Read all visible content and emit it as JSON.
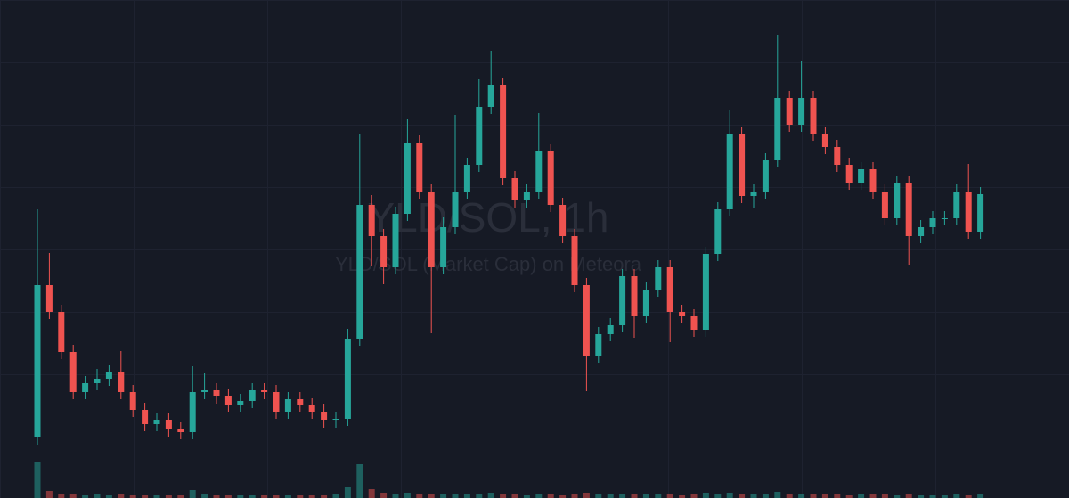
{
  "chart_data": {
    "type": "candlestick",
    "title": "YLD/SOL, 1h",
    "subtitle": "YLD/SOL (Market Cap) on Meteora",
    "open": [
      69,
      239,
      209,
      164,
      119,
      129,
      134,
      141,
      119,
      99,
      83,
      87,
      77,
      74,
      119,
      121,
      114,
      104,
      109,
      121,
      119,
      97,
      111,
      104,
      97,
      87,
      89,
      179,
      329,
      294,
      259,
      319,
      399,
      344,
      259,
      304,
      344,
      374,
      439,
      464,
      359,
      334,
      344,
      389,
      329,
      294,
      239,
      159,
      184,
      194,
      249,
      204,
      234,
      259,
      209,
      204,
      189,
      274,
      324,
      409,
      339,
      344,
      379,
      449,
      419,
      449,
      409,
      394,
      374,
      354,
      369,
      344,
      314,
      354,
      294,
      304,
      314,
      314,
      344,
      299
    ],
    "high": [
      324,
      275,
      217,
      172,
      137,
      145,
      149,
      165,
      127,
      107,
      95,
      95,
      85,
      148,
      140,
      129,
      122,
      117,
      129,
      129,
      127,
      119,
      119,
      112,
      105,
      97,
      190,
      409,
      340,
      302,
      327,
      425,
      407,
      352,
      315,
      430,
      382,
      470,
      502,
      472,
      367,
      352,
      432,
      397,
      337,
      302,
      247,
      192,
      202,
      257,
      257,
      242,
      267,
      267,
      217,
      212,
      282,
      332,
      435,
      417,
      352,
      387,
      520,
      457,
      490,
      457,
      417,
      402,
      382,
      377,
      377,
      352,
      362,
      362,
      312,
      322,
      322,
      352,
      375,
      349
    ],
    "low": [
      59,
      201,
      156,
      111,
      111,
      121,
      126,
      111,
      91,
      75,
      75,
      69,
      66,
      66,
      111,
      106,
      96,
      96,
      101,
      111,
      89,
      89,
      96,
      89,
      79,
      79,
      81,
      171,
      260,
      240,
      251,
      311,
      336,
      185,
      251,
      296,
      336,
      366,
      431,
      351,
      326,
      326,
      336,
      321,
      286,
      231,
      120,
      151,
      176,
      186,
      180,
      196,
      226,
      175,
      196,
      181,
      181,
      266,
      316,
      331,
      325,
      336,
      371,
      411,
      411,
      401,
      386,
      366,
      346,
      346,
      336,
      306,
      306,
      262,
      286,
      296,
      306,
      306,
      291,
      291
    ],
    "close": [
      239,
      209,
      164,
      119,
      129,
      134,
      141,
      119,
      99,
      83,
      87,
      77,
      74,
      119,
      121,
      114,
      104,
      109,
      121,
      119,
      97,
      111,
      104,
      97,
      87,
      89,
      179,
      329,
      294,
      259,
      319,
      399,
      344,
      259,
      304,
      344,
      374,
      439,
      464,
      359,
      334,
      344,
      389,
      329,
      294,
      239,
      159,
      184,
      194,
      249,
      204,
      234,
      259,
      209,
      204,
      189,
      274,
      324,
      409,
      339,
      344,
      379,
      449,
      419,
      449,
      409,
      394,
      374,
      354,
      369,
      344,
      314,
      354,
      294,
      304,
      314,
      314,
      344,
      299,
      341
    ],
    "volume": [
      40,
      8,
      5,
      4,
      3,
      4,
      3,
      4,
      3,
      3,
      3,
      3,
      3,
      9,
      4,
      3,
      3,
      3,
      3,
      3,
      3,
      3,
      3,
      3,
      3,
      4,
      12,
      38,
      10,
      6,
      5,
      6,
      5,
      4,
      4,
      5,
      4,
      5,
      6,
      4,
      4,
      3,
      4,
      4,
      3,
      4,
      6,
      4,
      4,
      5,
      4,
      4,
      5,
      4,
      3,
      4,
      6,
      5,
      6,
      4,
      4,
      5,
      7,
      5,
      5,
      4,
      4,
      4,
      3,
      4,
      4,
      4,
      3,
      4,
      3,
      3,
      3,
      4,
      3,
      4
    ],
    "ylim": [
      0,
      559
    ],
    "y2lim": [
      0,
      559
    ],
    "up_color": "#26a69a",
    "down_color": "#ef5350"
  }
}
